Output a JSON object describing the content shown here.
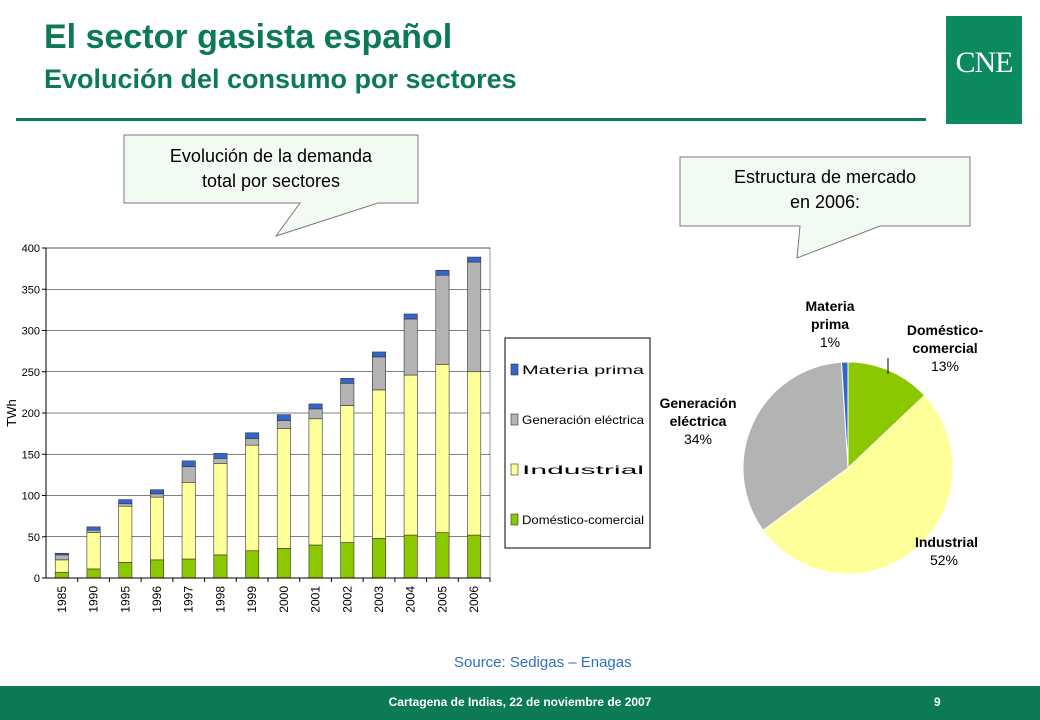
{
  "header": {
    "title": "El sector gasista español",
    "subtitle": "Evolución del consumo por sectores",
    "logo_text": "CNE"
  },
  "callouts": {
    "bar_line1": "Evolución de la demanda",
    "bar_line2": "total por sectores",
    "pie_line1": "Estructura de mercado",
    "pie_line2": "en  2006:"
  },
  "source": "Source: Sedigas – Enagas",
  "footer": {
    "text": "Cartagena de Indias, 22 de noviembre de 2007",
    "page": "9"
  },
  "colors": {
    "brand": "#0b7a55",
    "materia_prima": "#3366cc",
    "generacion": "#b3b3b3",
    "industrial": "#ffff99",
    "domestico": "#8cc800"
  },
  "chart_data": [
    {
      "type": "bar",
      "stacked": true,
      "ylabel": "TWh",
      "ylim": [
        0,
        400
      ],
      "yticks": [
        0,
        50,
        100,
        150,
        200,
        250,
        300,
        350,
        400
      ],
      "grid": true,
      "legend_position": "right",
      "categories": [
        "1985",
        "1990",
        "1995",
        "1996",
        "1997",
        "1998",
        "1999",
        "2000",
        "2001",
        "2002",
        "2003",
        "2004",
        "2005",
        "2006"
      ],
      "series": [
        {
          "name": "Doméstico-comercial",
          "color": "#8cc800",
          "values": [
            7,
            11,
            19,
            22,
            23,
            28,
            33,
            36,
            40,
            43,
            48,
            52,
            55,
            52
          ]
        },
        {
          "name": "Industrial",
          "color": "#ffff99",
          "values": [
            15,
            44,
            68,
            76,
            93,
            111,
            128,
            145,
            153,
            166,
            180,
            194,
            204,
            198
          ]
        },
        {
          "name": "Generación eléctrica",
          "color": "#b3b3b3",
          "values": [
            6,
            3,
            3,
            4,
            19,
            6,
            8,
            10,
            12,
            27,
            40,
            68,
            108,
            133
          ]
        },
        {
          "name": "Materia prima",
          "color": "#3366cc",
          "values": [
            2,
            4,
            5,
            5,
            7,
            6,
            7,
            7,
            6,
            6,
            6,
            6,
            6,
            6
          ]
        }
      ]
    },
    {
      "type": "pie",
      "slices": [
        {
          "name": "Materia prima",
          "line1": "Materia",
          "line2": "prima",
          "pct_label": "1%",
          "value": 1,
          "color": "#3366cc"
        },
        {
          "name": "Doméstico-comercial",
          "line1": "Doméstico-",
          "line2": "comercial",
          "pct_label": "13%",
          "value": 13,
          "color": "#8cc800"
        },
        {
          "name": "Industrial",
          "line1": "Industrial",
          "line2": "",
          "pct_label": "52%",
          "value": 52,
          "color": "#ffff99"
        },
        {
          "name": "Generación eléctrica",
          "line1": "Generación",
          "line2": "eléctrica",
          "pct_label": "34%",
          "value": 34,
          "color": "#b3b3b3"
        }
      ]
    }
  ]
}
